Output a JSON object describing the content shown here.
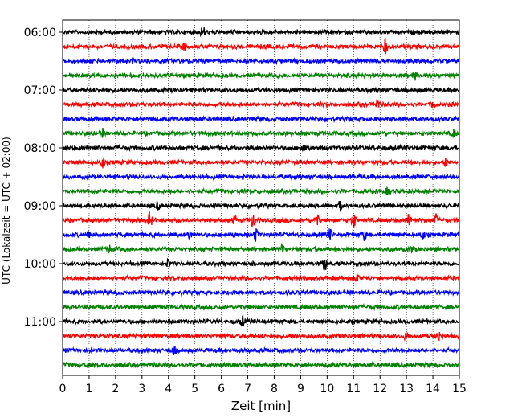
{
  "chart_data": {
    "type": "line",
    "title": "",
    "xlabel": "Zeit  [min]",
    "ylabel": "UTC (Lokalzeit = UTC + 02:00)",
    "xlim": [
      0,
      15
    ],
    "x_ticks": [
      "0",
      "1",
      "2",
      "3",
      "4",
      "5",
      "6",
      "7",
      "8",
      "9",
      "10",
      "11",
      "12",
      "13",
      "14",
      "15"
    ],
    "y_tick_labels": [
      "06:00",
      "07:00",
      "08:00",
      "09:00",
      "10:00",
      "11:00"
    ],
    "grid": "vertical dotted",
    "legend": "none",
    "color_cycle": [
      "#000000",
      "#ff0000",
      "#0000ff",
      "#008000"
    ],
    "rows": [
      {
        "start": "06:00",
        "color": "#000000",
        "events": [
          [
            5.3,
            2.0
          ]
        ]
      },
      {
        "start": "06:15",
        "color": "#ff0000",
        "events": [
          [
            12.2,
            3.0
          ],
          [
            4.6,
            1.5
          ]
        ]
      },
      {
        "start": "06:30",
        "color": "#0000ff",
        "events": []
      },
      {
        "start": "06:45",
        "color": "#008000",
        "events": [
          [
            13.3,
            1.6
          ]
        ]
      },
      {
        "start": "07:00",
        "color": "#000000",
        "events": []
      },
      {
        "start": "07:15",
        "color": "#ff0000",
        "events": [
          [
            11.9,
            2.2
          ],
          [
            14.0,
            1.4
          ]
        ]
      },
      {
        "start": "07:30",
        "color": "#0000ff",
        "events": []
      },
      {
        "start": "07:45",
        "color": "#008000",
        "events": [
          [
            1.5,
            1.6
          ],
          [
            14.8,
            1.6
          ]
        ]
      },
      {
        "start": "08:00",
        "color": "#000000",
        "events": [
          [
            9.1,
            2.0
          ]
        ]
      },
      {
        "start": "08:15",
        "color": "#ff0000",
        "events": [
          [
            1.5,
            2.4
          ],
          [
            14.5,
            1.6
          ]
        ]
      },
      {
        "start": "08:30",
        "color": "#0000ff",
        "events": []
      },
      {
        "start": "08:45",
        "color": "#008000",
        "events": [
          [
            12.3,
            1.6
          ]
        ]
      },
      {
        "start": "09:00",
        "color": "#000000",
        "events": [
          [
            10.5,
            1.8
          ],
          [
            3.6,
            1.4
          ]
        ]
      },
      {
        "start": "09:15",
        "color": "#ff0000",
        "events": [
          [
            3.3,
            3.0
          ],
          [
            7.2,
            3.0
          ],
          [
            9.6,
            2.6
          ],
          [
            11.0,
            3.2
          ],
          [
            13.1,
            2.4
          ],
          [
            14.1,
            2.6
          ],
          [
            6.5,
            1.8
          ]
        ]
      },
      {
        "start": "09:30",
        "color": "#0000ff",
        "events": [
          [
            1.0,
            2.0
          ],
          [
            7.3,
            2.2
          ],
          [
            10.1,
            2.2
          ],
          [
            11.4,
            2.0
          ],
          [
            13.6,
            2.0
          ],
          [
            4.8,
            1.6
          ]
        ]
      },
      {
        "start": "09:45",
        "color": "#008000",
        "events": [
          [
            1.8,
            1.4
          ],
          [
            8.3,
            1.4
          ],
          [
            13.2,
            1.4
          ]
        ]
      },
      {
        "start": "10:00",
        "color": "#000000",
        "events": [
          [
            9.9,
            3.0
          ],
          [
            4.0,
            1.6
          ]
        ]
      },
      {
        "start": "10:15",
        "color": "#ff0000",
        "events": [
          [
            11.1,
            2.0
          ]
        ]
      },
      {
        "start": "10:30",
        "color": "#0000ff",
        "events": []
      },
      {
        "start": "10:45",
        "color": "#008000",
        "events": []
      },
      {
        "start": "11:00",
        "color": "#000000",
        "events": [
          [
            6.8,
            2.0
          ]
        ]
      },
      {
        "start": "11:15",
        "color": "#ff0000",
        "events": [
          [
            14.2,
            2.2
          ],
          [
            13.0,
            1.6
          ]
        ]
      },
      {
        "start": "11:30",
        "color": "#0000ff",
        "events": [
          [
            4.2,
            1.8
          ]
        ]
      },
      {
        "start": "11:45",
        "color": "#008000",
        "events": []
      }
    ]
  }
}
